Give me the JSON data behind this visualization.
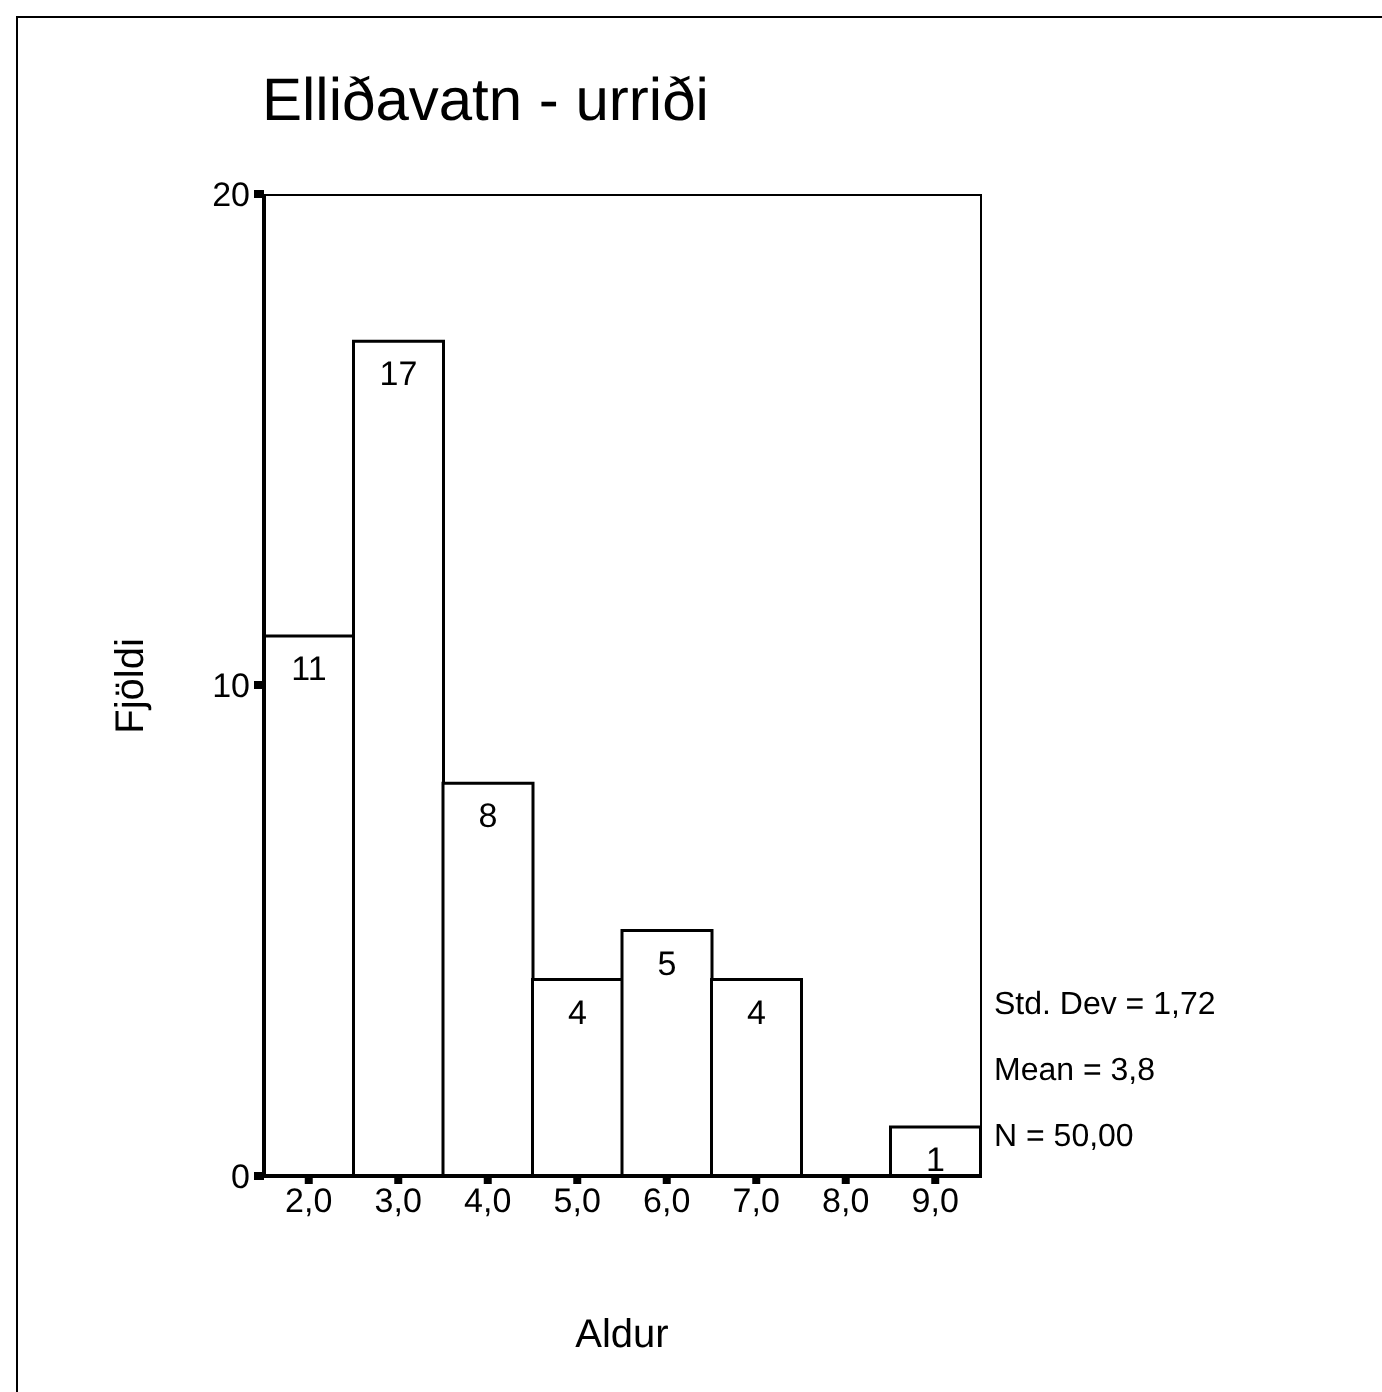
{
  "chart_data": {
    "type": "histogram",
    "title": "Elliðavatn - urriði",
    "xlabel": "Aldur",
    "ylabel": "Fjöldi",
    "bins": [
      1.5,
      2.5,
      3.5,
      4.5,
      5.5,
      6.5,
      7.5,
      8.5,
      9.5
    ],
    "values": [
      11,
      17,
      8,
      4,
      5,
      4,
      0,
      1
    ],
    "value_labels": [
      "11",
      "17",
      "8",
      "4",
      "5",
      "4",
      null,
      "1"
    ],
    "color": "#ffffff",
    "xlim": [
      1.5,
      9.5
    ],
    "xticks": [
      {
        "value": 2,
        "label": "2,0"
      },
      {
        "value": 3,
        "label": "3,0"
      },
      {
        "value": 4,
        "label": "4,0"
      },
      {
        "value": 5,
        "label": "5,0"
      },
      {
        "value": 6,
        "label": "6,0"
      },
      {
        "value": 7,
        "label": "7,0"
      },
      {
        "value": 8,
        "label": "8,0"
      },
      {
        "value": 9,
        "label": "9,0"
      }
    ],
    "ylim": [
      0,
      20
    ],
    "yticks": [
      0,
      10,
      20
    ],
    "grid": false,
    "annotations": [
      "Std. Dev = 1,72",
      "Mean = 3,8",
      "N = 50,00"
    ]
  }
}
